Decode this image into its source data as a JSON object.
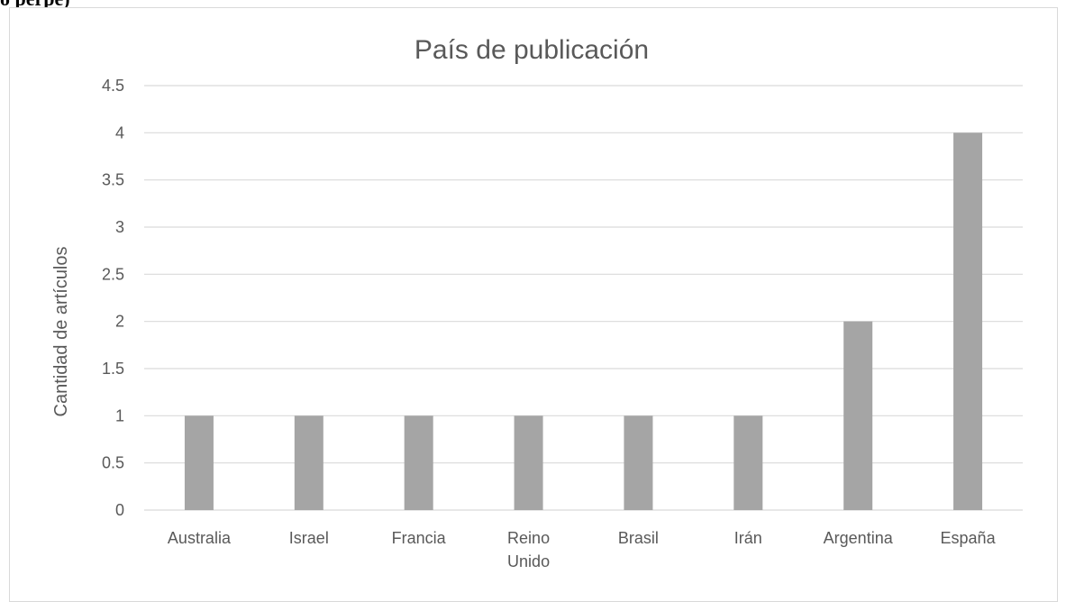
{
  "page": {
    "top_fragment": "o perpe)"
  },
  "chart_data": {
    "type": "bar",
    "title": "País de publicación",
    "xlabel": "",
    "ylabel": "Cantidad de artículos",
    "categories": [
      "Australia",
      "Israel",
      "Francia",
      "Reino Unido",
      "Brasil",
      "Irán",
      "Argentina",
      "España"
    ],
    "values": [
      1,
      1,
      1,
      1,
      1,
      1,
      2,
      4
    ],
    "ylim": [
      0,
      4.5
    ],
    "yticks": [
      "0",
      "0.5",
      "1",
      "1.5",
      "2",
      "2.5",
      "3",
      "3.5",
      "4",
      "4.5"
    ],
    "grid": true,
    "legend": "none",
    "bar_color": "#a5a5a5",
    "grid_color": "#d9d9d9",
    "text_color": "#595959"
  }
}
